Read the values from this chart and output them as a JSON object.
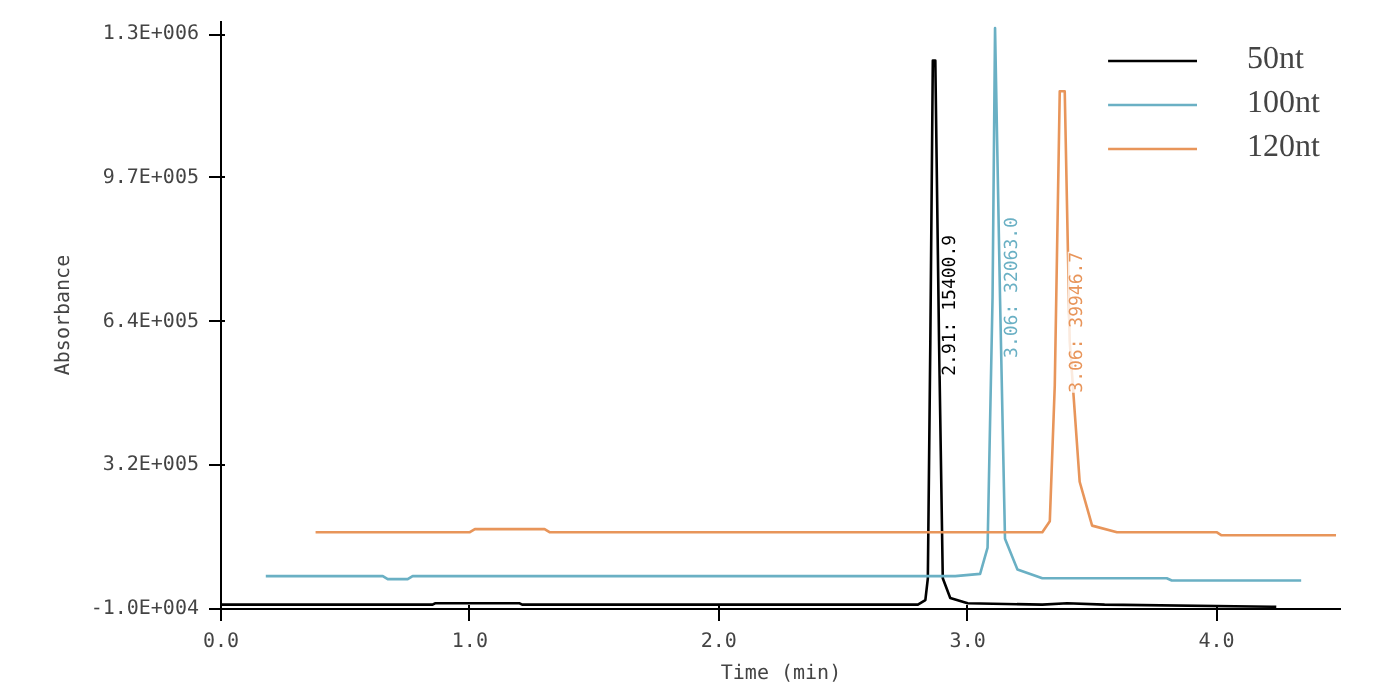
{
  "chart_data": {
    "type": "line",
    "xlabel": "Time (min)",
    "ylabel": "Absorbance",
    "xlim": [
      0,
      4.5
    ],
    "ylim": [
      -10000,
      1330000
    ],
    "xticks": [
      {
        "value": 0,
        "label": "0.0"
      },
      {
        "value": 1,
        "label": "1.0"
      },
      {
        "value": 2,
        "label": "2.0"
      },
      {
        "value": 3,
        "label": "3.0"
      },
      {
        "value": 4,
        "label": "4.0"
      }
    ],
    "yticks": [
      {
        "value": -10000,
        "label": "-1.0E+004"
      },
      {
        "value": 317500,
        "label": "3.2E+005"
      },
      {
        "value": 645000,
        "label": "6.4E+005"
      },
      {
        "value": 972500,
        "label": "9.7E+005"
      },
      {
        "value": 1300000,
        "label": "1.3E+006"
      }
    ],
    "grid": false,
    "legend": "top right",
    "marker": "none",
    "line_style": "solid",
    "series": [
      {
        "name": "50nt",
        "color": "#000000",
        "x": [
          0,
          0.85,
          0.86,
          1.2,
          1.21,
          2.8,
          2.83,
          2.84,
          2.85,
          2.86,
          2.87,
          2.885,
          2.9,
          2.93,
          3.0,
          3.3,
          3.4,
          3.55,
          4.24
        ],
        "values": [
          0,
          0,
          3000,
          3000,
          0,
          0,
          10000,
          60000,
          600000,
          1240000,
          1240000,
          600000,
          60000,
          15000,
          3000,
          0,
          3000,
          0,
          -5000
        ]
      },
      {
        "name": "100nt",
        "color": "#6ab0c4",
        "x": [
          0.18,
          0.65,
          0.67,
          0.75,
          0.77,
          2.95,
          3.05,
          3.08,
          3.1,
          3.11,
          3.13,
          3.15,
          3.2,
          3.3,
          3.8,
          3.82,
          4.34
        ],
        "values": [
          65000,
          65000,
          58000,
          58000,
          65000,
          65000,
          70000,
          130000,
          700000,
          1314000,
          700000,
          150000,
          80000,
          60000,
          60000,
          55000,
          55000
        ]
      },
      {
        "name": "120nt",
        "color": "#e8955a",
        "x": [
          0.38,
          1.0,
          1.02,
          1.3,
          1.32,
          3.3,
          3.33,
          3.35,
          3.37,
          3.39,
          3.41,
          3.45,
          3.5,
          3.6,
          4.0,
          4.02,
          4.48
        ],
        "values": [
          165000,
          165000,
          172000,
          172000,
          165000,
          165000,
          190000,
          500000,
          1170000,
          1170000,
          600000,
          280000,
          180000,
          165000,
          165000,
          158000,
          158000
        ]
      }
    ],
    "annotations": [
      "2.91: 15400.9",
      "3.06: 32063.0",
      "3.06: 39946.7"
    ]
  }
}
